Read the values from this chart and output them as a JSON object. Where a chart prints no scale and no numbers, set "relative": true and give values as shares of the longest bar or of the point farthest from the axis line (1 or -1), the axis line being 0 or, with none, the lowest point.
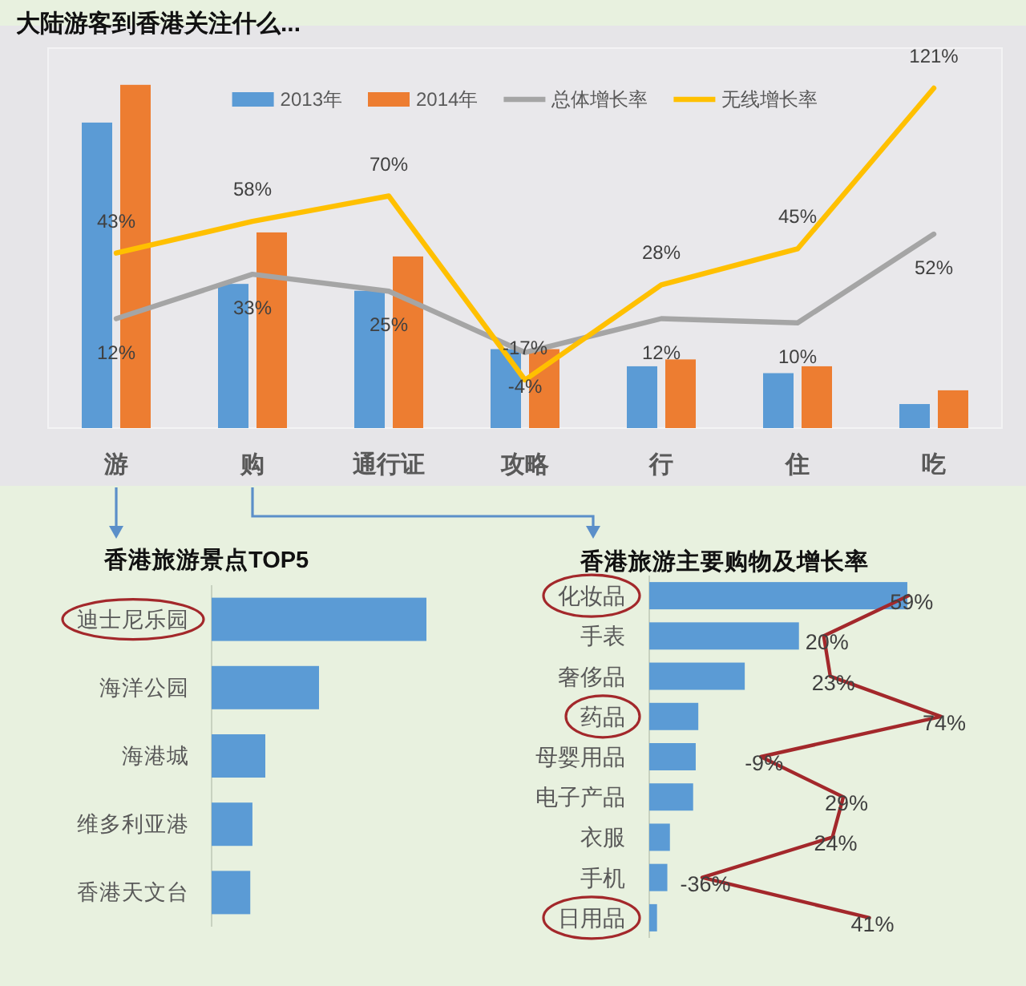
{
  "chart_data": [
    {
      "type": "bar",
      "title": "大陆游客到香港关注什么...",
      "categories": [
        "游",
        "购",
        "通行证",
        "攻略",
        "行",
        "住",
        "吃"
      ],
      "relative": true,
      "legend": "top",
      "series": [
        {
          "name": "2013年",
          "color": "#5b9bd5",
          "values": [
            0.89,
            0.42,
            0.4,
            0.23,
            0.18,
            0.16,
            0.07
          ]
        },
        {
          "name": "2014年",
          "color": "#ed7d31",
          "values": [
            1,
            0.57,
            0.5,
            0.23,
            0.2,
            0.18,
            0.11
          ]
        }
      ]
    },
    {
      "type": "line",
      "categories": [
        null,
        null,
        null,
        null,
        null,
        null,
        null
      ],
      "legend": "top",
      "series": [
        {
          "name": "总体增长率",
          "color": "#a5a5a5",
          "values": [
            12,
            33,
            25,
            -4,
            12,
            10,
            52
          ],
          "value_labels": [
            "12%",
            "33%",
            "25%",
            "-4%",
            "12%",
            "10%",
            "52%"
          ]
        },
        {
          "name": "无线增长率",
          "color": "#ffc000",
          "values": [
            43,
            58,
            70,
            -17,
            28,
            45,
            121
          ],
          "value_labels": [
            "43%",
            "58%",
            "70%",
            "-17%",
            "28%",
            "45%",
            "121%"
          ]
        }
      ]
    },
    {
      "type": "bar",
      "orientation": "horizontal",
      "title": "香港旅游景点TOP5",
      "categories": [
        "迪士尼乐园",
        "海洋公园",
        "海港城",
        "维多利亚港",
        "香港天文台"
      ],
      "relative": true,
      "color": "#5b9bd5",
      "values": [
        1,
        0.5,
        0.25,
        0.19,
        0.18
      ]
    },
    {
      "type": "bar",
      "orientation": "horizontal",
      "title": "香港旅游主要购物及增长率",
      "categories": [
        "化妆品",
        "手表",
        "奢侈品",
        "药品",
        "母婴用品",
        "电子产品",
        "衣服",
        "手机",
        "日用品"
      ],
      "relative": true,
      "color": "#5b9bd5",
      "values": [
        1,
        0.58,
        0.37,
        0.19,
        0.18,
        0.17,
        0.08,
        0.07,
        0.03
      ]
    },
    {
      "type": "line",
      "orientation": "horizontal",
      "categories": [
        null,
        null,
        null,
        null,
        null,
        null,
        null,
        null,
        null
      ],
      "color": "#a3282b",
      "values": [
        59,
        20,
        23,
        74,
        -9,
        29,
        24,
        -36,
        41
      ],
      "value_labels": [
        "59%",
        "20%",
        "23%",
        "74%",
        "-9%",
        "29%",
        "24%",
        "-36%",
        "41%"
      ]
    }
  ]
}
